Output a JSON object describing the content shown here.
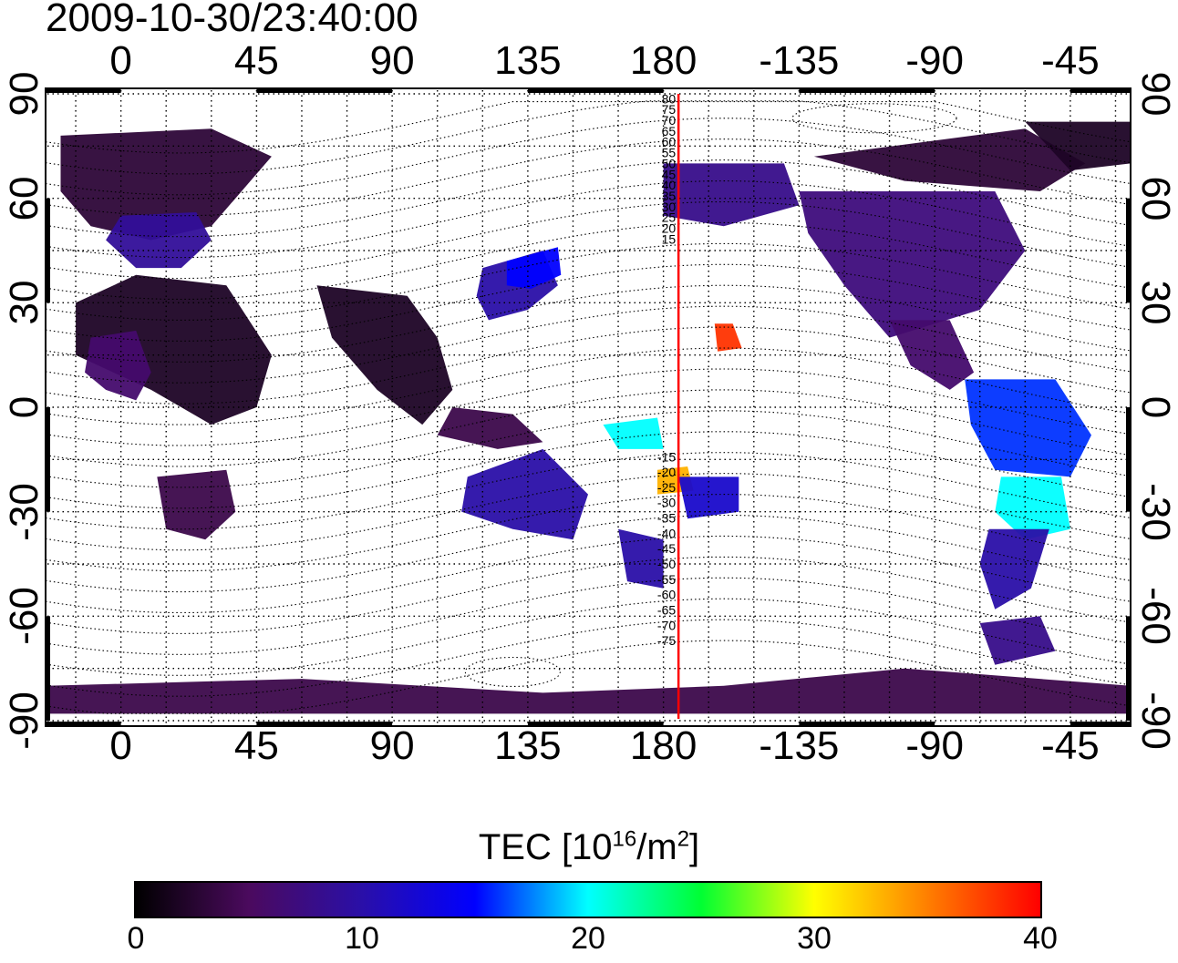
{
  "timestamp": "2009-10-30/23:40:00",
  "colorbar": {
    "title": "TEC  [10",
    "title_exp": "16",
    "title_unit": "/m",
    "title_unit_exp": "2",
    "title_close": "]",
    "ticks": [
      "0",
      "10",
      "20",
      "30",
      "40"
    ],
    "range": [
      0,
      40
    ],
    "colors": [
      "#000000",
      "#4b0a5e",
      "#2a0fa8",
      "#0000ff",
      "#00ffff",
      "#00ff33",
      "#ffff00",
      "#ff7f00",
      "#ff0000"
    ]
  },
  "top_ticks": [
    "0",
    "45",
    "90",
    "135",
    "180",
    "-135",
    "-90",
    "-45"
  ],
  "bottom_ticks": [
    "0",
    "45",
    "90",
    "135",
    "180",
    "-135",
    "-90",
    "-45"
  ],
  "left_ticks": [
    "90",
    "60",
    "30",
    "0",
    "-30",
    "-60",
    "-90"
  ],
  "right_ticks": [
    "90",
    "60",
    "30",
    "0",
    "-30",
    "-60",
    "-90"
  ],
  "meridian_labels_north": [
    "80",
    "75",
    "70",
    "65",
    "60",
    "55",
    "50",
    "45",
    "40",
    "35",
    "30",
    "25",
    "20",
    "15"
  ],
  "meridian_labels_south": [
    "-15",
    "-20",
    "-25",
    "-30",
    "-35",
    "-40",
    "-45",
    "-50",
    "-55",
    "-60",
    "-65",
    "-70",
    "-75"
  ],
  "map": {
    "lon_range": [
      -25,
      335
    ],
    "lat_range": [
      -90,
      90
    ],
    "grid_step_deg": 15,
    "red_meridian_lon": 185,
    "red_meridian_color": "#ff0000",
    "no_data_color": "#ffffff",
    "regions": [
      {
        "name": "europe-asia-north",
        "tec": 3,
        "pts": [
          [
            -20,
            78
          ],
          [
            30,
            80
          ],
          [
            50,
            72
          ],
          [
            40,
            62
          ],
          [
            30,
            52
          ],
          [
            10,
            48
          ],
          [
            -10,
            52
          ],
          [
            -20,
            62
          ]
        ]
      },
      {
        "name": "europe-blue",
        "tec": 9,
        "pts": [
          [
            0,
            55
          ],
          [
            25,
            56
          ],
          [
            30,
            48
          ],
          [
            20,
            40
          ],
          [
            5,
            40
          ],
          [
            -5,
            48
          ]
        ]
      },
      {
        "name": "africa-north",
        "tec": 2,
        "pts": [
          [
            -15,
            30
          ],
          [
            5,
            38
          ],
          [
            35,
            35
          ],
          [
            50,
            15
          ],
          [
            45,
            0
          ],
          [
            30,
            -5
          ],
          [
            10,
            5
          ],
          [
            -15,
            15
          ]
        ]
      },
      {
        "name": "africa-west",
        "tec": 6,
        "pts": [
          [
            -10,
            20
          ],
          [
            5,
            22
          ],
          [
            10,
            10
          ],
          [
            5,
            2
          ],
          [
            -5,
            5
          ],
          [
            -12,
            10
          ]
        ]
      },
      {
        "name": "southern-africa",
        "tec": 4,
        "pts": [
          [
            12,
            -20
          ],
          [
            35,
            -18
          ],
          [
            38,
            -30
          ],
          [
            28,
            -38
          ],
          [
            15,
            -35
          ]
        ]
      },
      {
        "name": "india-se-asia",
        "tec": 2,
        "pts": [
          [
            65,
            35
          ],
          [
            95,
            32
          ],
          [
            105,
            20
          ],
          [
            110,
            5
          ],
          [
            100,
            -5
          ],
          [
            85,
            5
          ],
          [
            70,
            20
          ]
        ]
      },
      {
        "name": "indonesia",
        "tec": 4,
        "pts": [
          [
            110,
            0
          ],
          [
            130,
            -2
          ],
          [
            140,
            -10
          ],
          [
            125,
            -12
          ],
          [
            105,
            -8
          ]
        ]
      },
      {
        "name": "east-asia",
        "tec": 10,
        "pts": [
          [
            120,
            40
          ],
          [
            140,
            45
          ],
          [
            145,
            35
          ],
          [
            135,
            28
          ],
          [
            122,
            25
          ],
          [
            118,
            32
          ]
        ]
      },
      {
        "name": "japan-cyan",
        "tec": 15,
        "pts": [
          [
            128,
            42
          ],
          [
            145,
            46
          ],
          [
            146,
            38
          ],
          [
            136,
            34
          ],
          [
            128,
            35
          ]
        ]
      },
      {
        "name": "australia",
        "tec": 10,
        "pts": [
          [
            115,
            -20
          ],
          [
            140,
            -12
          ],
          [
            155,
            -25
          ],
          [
            150,
            -38
          ],
          [
            130,
            -35
          ],
          [
            113,
            -30
          ]
        ]
      },
      {
        "name": "nz-region",
        "tec": 10,
        "pts": [
          [
            165,
            -35
          ],
          [
            180,
            -38
          ],
          [
            180,
            -52
          ],
          [
            168,
            -50
          ]
        ]
      },
      {
        "name": "pacific-green",
        "tec": 20,
        "pts": [
          [
            160,
            -5
          ],
          [
            178,
            -3
          ],
          [
            180,
            -12
          ],
          [
            165,
            -12
          ]
        ]
      },
      {
        "name": "pacific-hot",
        "tec": 33,
        "pts": [
          [
            178,
            -18
          ],
          [
            188,
            -17
          ],
          [
            190,
            -24
          ],
          [
            178,
            -25
          ]
        ]
      },
      {
        "name": "pacific-blue",
        "tec": 12,
        "pts": [
          [
            185,
            -20
          ],
          [
            205,
            -20
          ],
          [
            205,
            -30
          ],
          [
            188,
            -32
          ]
        ]
      },
      {
        "name": "hawaii-hot",
        "tec": 38,
        "pts": [
          [
            197,
            24
          ],
          [
            203,
            24
          ],
          [
            206,
            17
          ],
          [
            198,
            16
          ]
        ]
      },
      {
        "name": "alaska",
        "tec": 8,
        "pts": [
          [
            180,
            70
          ],
          [
            220,
            70
          ],
          [
            225,
            58
          ],
          [
            200,
            52
          ],
          [
            180,
            55
          ]
        ]
      },
      {
        "name": "north-america",
        "tec": 7,
        "pts": [
          [
            225,
            62
          ],
          [
            290,
            62
          ],
          [
            300,
            45
          ],
          [
            285,
            28
          ],
          [
            255,
            20
          ],
          [
            240,
            35
          ],
          [
            228,
            50
          ]
        ]
      },
      {
        "name": "canada-arctic",
        "tec": 3,
        "pts": [
          [
            230,
            72
          ],
          [
            300,
            80
          ],
          [
            320,
            70
          ],
          [
            305,
            62
          ],
          [
            260,
            65
          ]
        ]
      },
      {
        "name": "greenland",
        "tec": 2,
        "pts": [
          [
            300,
            82
          ],
          [
            335,
            82
          ],
          [
            335,
            70
          ],
          [
            315,
            68
          ]
        ]
      },
      {
        "name": "central-america",
        "tec": 6,
        "pts": [
          [
            255,
            25
          ],
          [
            275,
            25
          ],
          [
            283,
            10
          ],
          [
            275,
            5
          ],
          [
            262,
            12
          ]
        ]
      },
      {
        "name": "south-america-north",
        "tec": 16,
        "pts": [
          [
            280,
            8
          ],
          [
            310,
            8
          ],
          [
            322,
            -8
          ],
          [
            315,
            -20
          ],
          [
            290,
            -18
          ],
          [
            282,
            -5
          ]
        ]
      },
      {
        "name": "south-america-green",
        "tec": 20,
        "pts": [
          [
            292,
            -20
          ],
          [
            312,
            -20
          ],
          [
            315,
            -35
          ],
          [
            300,
            -38
          ],
          [
            290,
            -30
          ]
        ]
      },
      {
        "name": "south-america-south",
        "tec": 10,
        "pts": [
          [
            288,
            -35
          ],
          [
            308,
            -35
          ],
          [
            302,
            -52
          ],
          [
            290,
            -58
          ],
          [
            285,
            -45
          ]
        ]
      },
      {
        "name": "antarctica-west",
        "tec": 4,
        "pts": [
          [
            -25,
            -80
          ],
          [
            60,
            -78
          ],
          [
            140,
            -82
          ],
          [
            200,
            -80
          ],
          [
            260,
            -75
          ],
          [
            335,
            -80
          ],
          [
            335,
            -88
          ],
          [
            -25,
            -88
          ]
        ]
      },
      {
        "name": "antarctic-peninsula",
        "tec": 8,
        "pts": [
          [
            285,
            -62
          ],
          [
            305,
            -60
          ],
          [
            310,
            -70
          ],
          [
            290,
            -74
          ]
        ]
      }
    ]
  }
}
